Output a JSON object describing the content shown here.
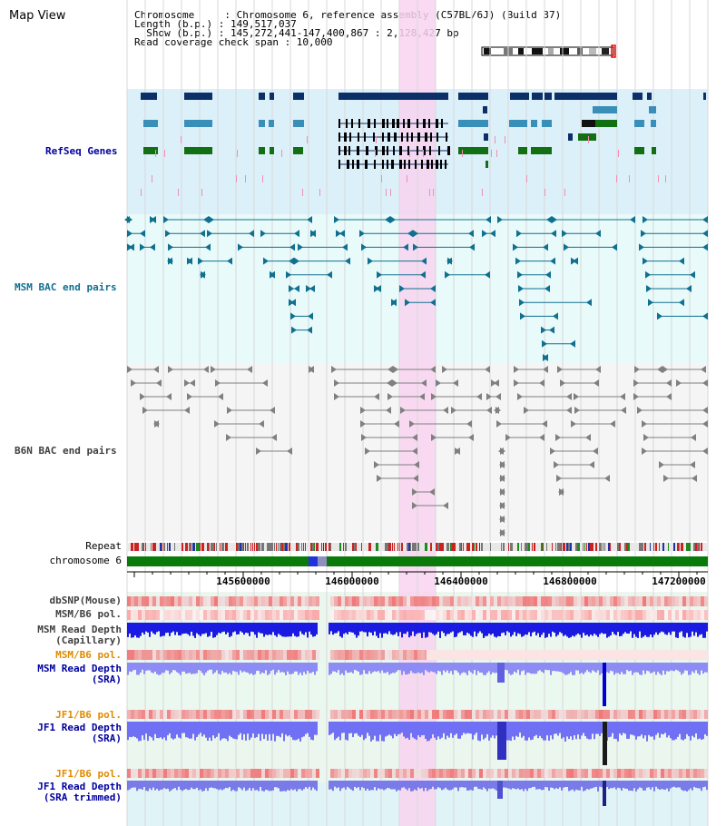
{
  "view": {
    "title": "Map View",
    "chromosome_label": "Chromosome     : Chromosome 6, reference assembly (C57BL/6J) (Build 37)",
    "length_label": "Length (b.p.) : 149,517,037",
    "show_label": "  Show (b.p.) : 145,272,441-147,400,867 : 2,128,427 bp",
    "coverage_label": "Read coverage check span : 10,000"
  },
  "tracks": {
    "refseq": "RefSeq Genes",
    "msm_bac": "MSM BAC end pairs",
    "b6n_bac": "B6N BAC end pairs",
    "repeat": "Repeat",
    "chromosome": "chromosome 6"
  },
  "axis": {
    "ticks": [
      "145600000",
      "146000000",
      "146400000",
      "146800000",
      "147200000"
    ]
  },
  "panels": {
    "dbsnp": "dbSNP(Mouse)",
    "msm_b6_pol_1": "MSM/B6 pol.",
    "msm_read_depth_cap": "MSM Read Depth\n(Capillary)",
    "msm_b6_pol_2": "MSM/B6 pol.",
    "msm_read_depth_sra": "MSM Read Depth\n(SRA)",
    "jf1_b6_pol_1": "JF1/B6 pol.",
    "jf1_read_depth_sra": "JF1 Read Depth\n(SRA)",
    "jf1_b6_pol_2": "JF1/B6 pol.",
    "jf1_read_depth_trim": "JF1 Read Depth\n(SRA trimmed)"
  },
  "colors": {
    "refseq_bg": "#dcf0fa",
    "msm_bg": "#e8fafa",
    "b6n_bg": "#f5f5f5",
    "highlight": "#f8d4f0",
    "gene_dark": "#0c2f68",
    "gene_mid": "#3a8fb8",
    "gene_green": "#127012",
    "msm_pair": "#107090",
    "b6n_pair": "#808080",
    "label_blue": "#0000a0",
    "label_teal": "#107090",
    "label_gray": "#404040",
    "label_orange": "#e08a00"
  }
}
